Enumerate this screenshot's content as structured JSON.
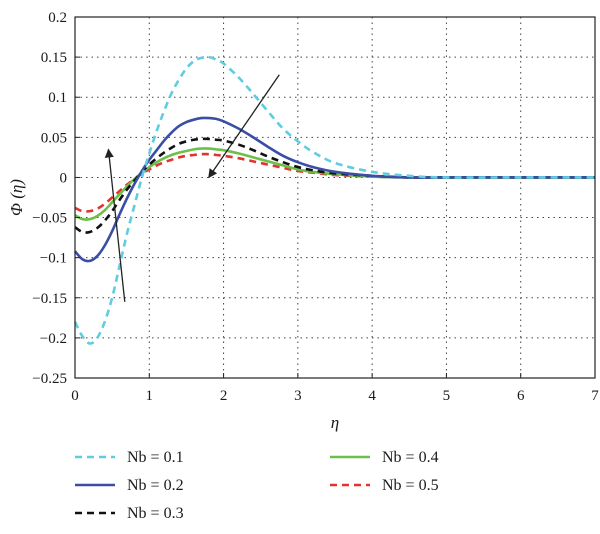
{
  "chart_data": {
    "type": "line",
    "xlabel": "η",
    "ylabel": "Φ (η)",
    "xlim": [
      0,
      7
    ],
    "ylim": [
      -0.25,
      0.2
    ],
    "xticks": [
      "0",
      "1",
      "2",
      "3",
      "4",
      "5",
      "6",
      "7"
    ],
    "yticks": [
      "0.2",
      "0.15",
      "0.1",
      "0.05",
      "0",
      "−0.05",
      "−0.1",
      "−0.15",
      "−0.2",
      "−0.25"
    ],
    "grid": true,
    "legend_position": "below",
    "series": [
      {
        "name": "Nb = 0.1",
        "color": "#5fcde0",
        "style": "dashed",
        "points": [
          [
            0,
            -0.18
          ],
          [
            0.1,
            -0.198
          ],
          [
            0.2,
            -0.207
          ],
          [
            0.3,
            -0.2
          ],
          [
            0.4,
            -0.18
          ],
          [
            0.5,
            -0.15
          ],
          [
            0.6,
            -0.11
          ],
          [
            0.7,
            -0.07
          ],
          [
            0.8,
            -0.035
          ],
          [
            0.9,
            0
          ],
          [
            1.0,
            0.03
          ],
          [
            1.1,
            0.058
          ],
          [
            1.2,
            0.083
          ],
          [
            1.3,
            0.105
          ],
          [
            1.4,
            0.122
          ],
          [
            1.5,
            0.136
          ],
          [
            1.6,
            0.145
          ],
          [
            1.7,
            0.149
          ],
          [
            1.8,
            0.15
          ],
          [
            1.9,
            0.147
          ],
          [
            2.0,
            0.142
          ],
          [
            2.2,
            0.125
          ],
          [
            2.4,
            0.104
          ],
          [
            2.6,
            0.082
          ],
          [
            2.8,
            0.061
          ],
          [
            3.0,
            0.045
          ],
          [
            3.2,
            0.032
          ],
          [
            3.5,
            0.018
          ],
          [
            4.0,
            0.007
          ],
          [
            4.5,
            0.002
          ],
          [
            5.0,
            0.0
          ],
          [
            6.0,
            0.0
          ],
          [
            7.0,
            0.0
          ]
        ]
      },
      {
        "name": "Nb = 0.2",
        "color": "#3b4ea6",
        "style": "solid",
        "points": [
          [
            0,
            -0.092
          ],
          [
            0.1,
            -0.102
          ],
          [
            0.2,
            -0.104
          ],
          [
            0.3,
            -0.098
          ],
          [
            0.4,
            -0.085
          ],
          [
            0.5,
            -0.067
          ],
          [
            0.6,
            -0.046
          ],
          [
            0.7,
            -0.026
          ],
          [
            0.8,
            -0.008
          ],
          [
            0.9,
            0.008
          ],
          [
            1.0,
            0.022
          ],
          [
            1.1,
            0.034
          ],
          [
            1.2,
            0.046
          ],
          [
            1.3,
            0.056
          ],
          [
            1.4,
            0.064
          ],
          [
            1.5,
            0.069
          ],
          [
            1.6,
            0.072
          ],
          [
            1.7,
            0.074
          ],
          [
            1.8,
            0.074
          ],
          [
            1.9,
            0.073
          ],
          [
            2.0,
            0.07
          ],
          [
            2.2,
            0.061
          ],
          [
            2.4,
            0.05
          ],
          [
            2.6,
            0.038
          ],
          [
            2.8,
            0.027
          ],
          [
            3.0,
            0.019
          ],
          [
            3.2,
            0.013
          ],
          [
            3.5,
            0.007
          ],
          [
            4.0,
            0.002
          ],
          [
            4.5,
            0.0
          ],
          [
            5.0,
            0.0
          ],
          [
            6.0,
            0.0
          ],
          [
            7.0,
            0.0
          ]
        ]
      },
      {
        "name": "Nb = 0.3",
        "color": "#111111",
        "style": "dashed",
        "points": [
          [
            0,
            -0.062
          ],
          [
            0.1,
            -0.068
          ],
          [
            0.2,
            -0.068
          ],
          [
            0.3,
            -0.063
          ],
          [
            0.4,
            -0.054
          ],
          [
            0.5,
            -0.042
          ],
          [
            0.6,
            -0.028
          ],
          [
            0.7,
            -0.015
          ],
          [
            0.8,
            -0.004
          ],
          [
            0.9,
            0.007
          ],
          [
            1.0,
            0.016
          ],
          [
            1.1,
            0.024
          ],
          [
            1.2,
            0.031
          ],
          [
            1.3,
            0.037
          ],
          [
            1.4,
            0.042
          ],
          [
            1.5,
            0.045
          ],
          [
            1.6,
            0.047
          ],
          [
            1.7,
            0.048
          ],
          [
            1.8,
            0.048
          ],
          [
            1.9,
            0.047
          ],
          [
            2.0,
            0.046
          ],
          [
            2.2,
            0.041
          ],
          [
            2.4,
            0.034
          ],
          [
            2.6,
            0.026
          ],
          [
            2.8,
            0.019
          ],
          [
            3.0,
            0.013
          ],
          [
            3.2,
            0.009
          ],
          [
            3.5,
            0.005
          ],
          [
            4.0,
            0.002
          ],
          [
            4.5,
            0.0
          ],
          [
            5.0,
            0.0
          ],
          [
            6.0,
            0.0
          ],
          [
            7.0,
            0.0
          ]
        ]
      },
      {
        "name": "Nb = 0.4",
        "color": "#6cc04a",
        "style": "solid",
        "points": [
          [
            0,
            -0.047
          ],
          [
            0.1,
            -0.052
          ],
          [
            0.2,
            -0.052
          ],
          [
            0.3,
            -0.048
          ],
          [
            0.4,
            -0.041
          ],
          [
            0.5,
            -0.031
          ],
          [
            0.6,
            -0.021
          ],
          [
            0.7,
            -0.011
          ],
          [
            0.8,
            -0.002
          ],
          [
            0.9,
            0.006
          ],
          [
            1.0,
            0.013
          ],
          [
            1.1,
            0.019
          ],
          [
            1.2,
            0.024
          ],
          [
            1.3,
            0.028
          ],
          [
            1.4,
            0.031
          ],
          [
            1.5,
            0.033
          ],
          [
            1.6,
            0.035
          ],
          [
            1.7,
            0.036
          ],
          [
            1.8,
            0.036
          ],
          [
            1.9,
            0.035
          ],
          [
            2.0,
            0.034
          ],
          [
            2.2,
            0.03
          ],
          [
            2.4,
            0.025
          ],
          [
            2.6,
            0.02
          ],
          [
            2.8,
            0.015
          ],
          [
            3.0,
            0.01
          ],
          [
            3.2,
            0.007
          ],
          [
            3.5,
            0.004
          ],
          [
            4.0,
            0.001
          ],
          [
            4.5,
            0.0
          ],
          [
            5.0,
            0.0
          ],
          [
            6.0,
            0.0
          ],
          [
            7.0,
            0.0
          ]
        ]
      },
      {
        "name": "Nb = 0.5",
        "color": "#e0342e",
        "style": "dashed",
        "points": [
          [
            0,
            -0.038
          ],
          [
            0.1,
            -0.042
          ],
          [
            0.2,
            -0.042
          ],
          [
            0.3,
            -0.039
          ],
          [
            0.4,
            -0.033
          ],
          [
            0.5,
            -0.025
          ],
          [
            0.6,
            -0.017
          ],
          [
            0.7,
            -0.009
          ],
          [
            0.8,
            -0.002
          ],
          [
            0.9,
            0.005
          ],
          [
            1.0,
            0.01
          ],
          [
            1.1,
            0.015
          ],
          [
            1.2,
            0.019
          ],
          [
            1.3,
            0.022
          ],
          [
            1.4,
            0.025
          ],
          [
            1.5,
            0.027
          ],
          [
            1.6,
            0.028
          ],
          [
            1.7,
            0.029
          ],
          [
            1.8,
            0.029
          ],
          [
            1.9,
            0.028
          ],
          [
            2.0,
            0.027
          ],
          [
            2.2,
            0.024
          ],
          [
            2.4,
            0.02
          ],
          [
            2.6,
            0.016
          ],
          [
            2.8,
            0.012
          ],
          [
            3.0,
            0.008
          ],
          [
            3.2,
            0.006
          ],
          [
            3.5,
            0.003
          ],
          [
            4.0,
            0.001
          ],
          [
            4.5,
            0.0
          ],
          [
            5.0,
            0.0
          ],
          [
            6.0,
            0.0
          ],
          [
            7.0,
            0.0
          ]
        ]
      }
    ],
    "annotations": [
      {
        "type": "arrow",
        "from": [
          0.67,
          -0.155
        ],
        "to": [
          0.45,
          0.035
        ]
      },
      {
        "type": "arrow",
        "from": [
          2.75,
          0.128
        ],
        "to": [
          1.8,
          0.0
        ]
      }
    ]
  }
}
